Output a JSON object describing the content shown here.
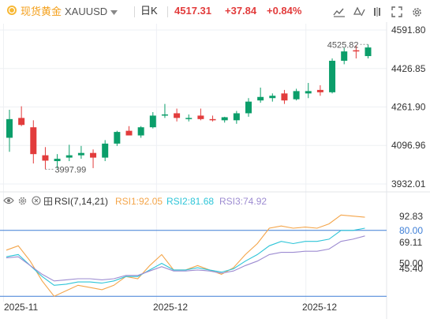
{
  "toolbar": {
    "symbol_name": "现货黄金",
    "symbol_code": "XAUUSD",
    "period": "日K",
    "price": "4517.31",
    "change": "+37.84",
    "change_pct": "+0.84%",
    "icons": [
      "brush-icon",
      "undo-icon",
      "pin-icon",
      "fullscreen-icon",
      "settings-icon"
    ]
  },
  "colors": {
    "up": "#0b9e6a",
    "down": "#e23c3c",
    "rsi1": "#f4a54a",
    "rsi2": "#2ec5d8",
    "rsi3": "#9d8cd1",
    "ref": "#3f7fd6",
    "grid": "#eef0f4"
  },
  "chart_data": [
    {
      "type": "candlestick",
      "price_axis": {
        "ticks": [
          "4591.80",
          "4426.85",
          "4261.90",
          "4096.96",
          "3932.01"
        ],
        "ylim": [
          3932.01,
          4591.8
        ]
      },
      "annotations": {
        "high": "4525.82",
        "low": "3997.99"
      },
      "x_labels": [
        "2025-11",
        "2025-12",
        "2025-12"
      ],
      "candles": [
        {
          "o": 4130,
          "h": 4250,
          "l": 4070,
          "c": 4210
        },
        {
          "o": 4215,
          "h": 4265,
          "l": 4180,
          "c": 4185
        },
        {
          "o": 4175,
          "h": 4205,
          "l": 4020,
          "c": 4060
        },
        {
          "o": 4055,
          "h": 4090,
          "l": 3995,
          "c": 4032
        },
        {
          "o": 4030,
          "h": 4060,
          "l": 3998,
          "c": 4040
        },
        {
          "o": 4045,
          "h": 4100,
          "l": 4030,
          "c": 4055
        },
        {
          "o": 4055,
          "h": 4095,
          "l": 4040,
          "c": 4065
        },
        {
          "o": 4065,
          "h": 4080,
          "l": 4000,
          "c": 4045
        },
        {
          "o": 4045,
          "h": 4120,
          "l": 4030,
          "c": 4105
        },
        {
          "o": 4105,
          "h": 4160,
          "l": 4095,
          "c": 4155
        },
        {
          "o": 4160,
          "h": 4180,
          "l": 4140,
          "c": 4140
        },
        {
          "o": 4140,
          "h": 4180,
          "l": 4130,
          "c": 4175
        },
        {
          "o": 4175,
          "h": 4240,
          "l": 4170,
          "c": 4225
        },
        {
          "o": 4225,
          "h": 4275,
          "l": 4215,
          "c": 4230
        },
        {
          "o": 4235,
          "h": 4255,
          "l": 4200,
          "c": 4215
        },
        {
          "o": 4215,
          "h": 4230,
          "l": 4200,
          "c": 4215
        },
        {
          "o": 4225,
          "h": 4255,
          "l": 4205,
          "c": 4210
        },
        {
          "o": 4210,
          "h": 4225,
          "l": 4200,
          "c": 4205
        },
        {
          "o": 4205,
          "h": 4220,
          "l": 4195,
          "c": 4218
        },
        {
          "o": 4205,
          "h": 4245,
          "l": 4190,
          "c": 4235
        },
        {
          "o": 4235,
          "h": 4300,
          "l": 4220,
          "c": 4285
        },
        {
          "o": 4290,
          "h": 4345,
          "l": 4280,
          "c": 4305
        },
        {
          "o": 4300,
          "h": 4320,
          "l": 4285,
          "c": 4310
        },
        {
          "o": 4320,
          "h": 4335,
          "l": 4275,
          "c": 4290
        },
        {
          "o": 4295,
          "h": 4340,
          "l": 4290,
          "c": 4330
        },
        {
          "o": 4320,
          "h": 4365,
          "l": 4300,
          "c": 4330
        },
        {
          "o": 4335,
          "h": 4355,
          "l": 4310,
          "c": 4325
        },
        {
          "o": 4325,
          "h": 4470,
          "l": 4320,
          "c": 4460
        },
        {
          "o": 4460,
          "h": 4515,
          "l": 4445,
          "c": 4500
        },
        {
          "o": 4505,
          "h": 4526,
          "l": 4470,
          "c": 4500
        },
        {
          "o": 4480,
          "h": 4530,
          "l": 4470,
          "c": 4517
        }
      ]
    },
    {
      "type": "line",
      "title": "RSI(7,14,21)",
      "legend": [
        "RSI1:92.05",
        "RSI2:81.68",
        "RSI3:74.92"
      ],
      "axis_ticks": [
        "92.83",
        "80.00",
        "69.11",
        "50.00",
        "45.40"
      ],
      "reference_lines": [
        80,
        20
      ],
      "ylim": [
        18,
        100
      ],
      "series": [
        {
          "name": "RSI1",
          "values": [
            62,
            66,
            52,
            34,
            20,
            25,
            30,
            28,
            26,
            30,
            38,
            36,
            48,
            58,
            44,
            44,
            48,
            44,
            40,
            46,
            58,
            68,
            82,
            84,
            82,
            83,
            82,
            86,
            94,
            93,
            92
          ]
        },
        {
          "name": "RSI2",
          "values": [
            56,
            58,
            48,
            38,
            30,
            31,
            33,
            33,
            32,
            34,
            38,
            38,
            44,
            50,
            44,
            44,
            46,
            44,
            42,
            45,
            52,
            58,
            66,
            70,
            68,
            70,
            70,
            72,
            80,
            80,
            82
          ]
        },
        {
          "name": "RSI3",
          "values": [
            55,
            56,
            48,
            40,
            34,
            35,
            36,
            36,
            35,
            36,
            39,
            39,
            43,
            47,
            43,
            43,
            44,
            43,
            41,
            43,
            48,
            52,
            58,
            60,
            60,
            61,
            61,
            63,
            70,
            72,
            75
          ]
        }
      ],
      "x_labels": [
        "2025-11",
        "2025-12",
        "2025-12"
      ]
    }
  ]
}
